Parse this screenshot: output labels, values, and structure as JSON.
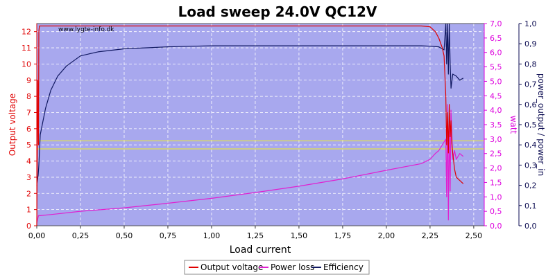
{
  "colors": {
    "plot_bg": "#a8a8ee",
    "grid": "#ffffff",
    "voltage": "#e00000",
    "power": "#e020d0",
    "efficiency": "#101860",
    "reference": "#f0f020",
    "right_axis": "#dd00dd",
    "far_axis": "#0a0a50"
  },
  "chart_data": {
    "type": "line",
    "title": "Load sweep 24.0V QC12V",
    "watermark": "www.lygte-info.dk",
    "xlabel": "Load current",
    "ylabel_left": "Output voltage",
    "ylabel_right": "watt",
    "ylabel_far": "power_output / power_in",
    "xlim": [
      0,
      2.56
    ],
    "ylim_left": [
      0,
      12.5
    ],
    "ylim_right": [
      0,
      7.0
    ],
    "ylim_far": [
      0,
      1.0
    ],
    "x_ticks": [
      "0,00",
      "0,25",
      "0,50",
      "0,75",
      "1,00",
      "1,25",
      "1,50",
      "1,75",
      "2,00",
      "2,25",
      "2,50"
    ],
    "y_left_ticks": [
      "0",
      "1",
      "2",
      "3",
      "4",
      "5",
      "6",
      "7",
      "8",
      "9",
      "10",
      "11",
      "12"
    ],
    "y_right_ticks": [
      "0,0",
      "0,5",
      "1,0",
      "1,5",
      "2,0",
      "2,5",
      "3,0",
      "3,5",
      "4,0",
      "4,5",
      "5,0",
      "5,5",
      "6,0",
      "6,5",
      "7,0"
    ],
    "y_far_ticks": [
      "0,0",
      "0,1",
      "0,2",
      "0,3",
      "0,4",
      "0,5",
      "0,6",
      "0,7",
      "0,8",
      "0,9",
      "1,0"
    ],
    "grid": true,
    "legend_position": "bottom-center",
    "reference_lines_left": [
      4.75,
      5.25
    ],
    "series": [
      {
        "name": "Output voltage",
        "axis": "left",
        "x": [
          0.0,
          0.003,
          0.006,
          0.01,
          0.012,
          0.015,
          0.02,
          0.1,
          0.5,
          1.0,
          1.5,
          2.0,
          2.2,
          2.25,
          2.28,
          2.3,
          2.32,
          2.33,
          2.34,
          2.345,
          2.35,
          2.355,
          2.36,
          2.365,
          2.37,
          2.375,
          2.38,
          2.39,
          2.4,
          2.42,
          2.44
        ],
        "y": [
          0.0,
          5.0,
          9.0,
          5.0,
          12.0,
          12.35,
          12.35,
          12.35,
          12.35,
          12.35,
          12.35,
          12.35,
          12.35,
          12.3,
          12.0,
          11.6,
          11.0,
          10.5,
          8.0,
          5.0,
          7.0,
          4.5,
          7.5,
          5.5,
          6.5,
          5.0,
          4.5,
          3.5,
          3.0,
          2.8,
          2.6
        ]
      },
      {
        "name": "Power loss",
        "axis": "right",
        "x": [
          0.0,
          0.01,
          0.02,
          0.1,
          0.25,
          0.5,
          0.75,
          1.0,
          1.25,
          1.5,
          1.75,
          2.0,
          2.2,
          2.25,
          2.28,
          2.3,
          2.32,
          2.34,
          2.345,
          2.35,
          2.355,
          2.36,
          2.365,
          2.37,
          2.38,
          2.39,
          2.4,
          2.42,
          2.44
        ],
        "y": [
          0.1,
          0.35,
          0.35,
          0.4,
          0.5,
          0.62,
          0.78,
          0.95,
          1.15,
          1.37,
          1.62,
          1.92,
          2.15,
          2.3,
          2.5,
          2.6,
          2.8,
          3.0,
          1.0,
          4.2,
          0.2,
          3.5,
          1.2,
          4.0,
          2.3,
          2.6,
          2.3,
          2.5,
          2.4
        ]
      },
      {
        "name": "Efficiency",
        "axis": "far",
        "x": [
          0.0,
          0.008,
          0.012,
          0.02,
          0.05,
          0.08,
          0.12,
          0.17,
          0.25,
          0.35,
          0.5,
          0.75,
          1.0,
          1.5,
          2.0,
          2.2,
          2.25,
          2.3,
          2.33,
          2.34,
          2.345,
          2.35,
          2.355,
          2.36,
          2.365,
          2.37,
          2.38,
          2.4,
          2.42,
          2.44
        ],
        "y": [
          0.2,
          0.25,
          0.3,
          0.45,
          0.58,
          0.67,
          0.74,
          0.79,
          0.84,
          0.86,
          0.875,
          0.885,
          0.89,
          0.89,
          0.89,
          0.89,
          0.888,
          0.885,
          0.87,
          1.0,
          0.8,
          1.0,
          0.75,
          1.0,
          0.8,
          0.68,
          0.75,
          0.74,
          0.72,
          0.73
        ]
      }
    ]
  }
}
